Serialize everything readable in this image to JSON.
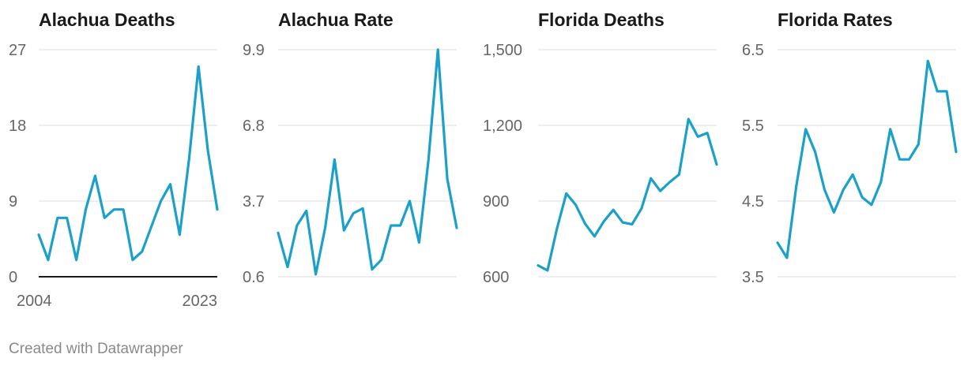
{
  "footer": "Created with Datawrapper",
  "chart_data": [
    {
      "type": "line",
      "title": "Alachua Deaths",
      "x": [
        2004,
        2005,
        2006,
        2007,
        2008,
        2009,
        2010,
        2011,
        2012,
        2013,
        2014,
        2015,
        2016,
        2017,
        2018,
        2019,
        2020,
        2021,
        2022,
        2023
      ],
      "values": [
        5,
        2,
        7,
        7,
        2,
        8,
        12,
        7,
        8,
        8,
        2,
        3,
        6,
        9,
        11,
        5,
        14,
        25,
        15,
        8
      ],
      "ylim": [
        0,
        27
      ],
      "yticks": [
        "27",
        "18",
        "9",
        "0"
      ],
      "ytick_values": [
        27,
        18,
        9,
        0
      ],
      "xticks": [
        "2004",
        "2023"
      ],
      "color": "#1ba1c9",
      "baseline": true
    },
    {
      "type": "line",
      "title": "Alachua Rate",
      "x": [
        2004,
        2005,
        2006,
        2007,
        2008,
        2009,
        2010,
        2011,
        2012,
        2013,
        2014,
        2015,
        2016,
        2017,
        2018,
        2019,
        2020,
        2021,
        2022,
        2023
      ],
      "values": [
        2.4,
        1.0,
        2.7,
        3.3,
        0.7,
        2.6,
        5.4,
        2.5,
        3.2,
        3.4,
        0.9,
        1.3,
        2.7,
        2.7,
        3.7,
        2.0,
        5.4,
        9.9,
        4.6,
        2.6
      ],
      "ylim": [
        0.6,
        9.9
      ],
      "yticks": [
        "9.9",
        "6.8",
        "3.7",
        "0.6"
      ],
      "ytick_values": [
        9.9,
        6.8,
        3.7,
        0.6
      ],
      "color": "#1ba1c9"
    },
    {
      "type": "line",
      "title": "Florida Deaths",
      "x": [
        2004,
        2005,
        2006,
        2007,
        2008,
        2009,
        2010,
        2011,
        2012,
        2013,
        2014,
        2015,
        2016,
        2017,
        2018,
        2019,
        2020,
        2021,
        2022,
        2023
      ],
      "values": [
        645,
        625,
        790,
        930,
        885,
        810,
        760,
        820,
        865,
        815,
        808,
        870,
        990,
        940,
        975,
        1005,
        1225,
        1155,
        1170,
        1045
      ],
      "ylim": [
        600,
        1500
      ],
      "yticks": [
        "1,500",
        "1,200",
        "900",
        "600"
      ],
      "ytick_values": [
        1500,
        1200,
        900,
        600
      ],
      "color": "#1ba1c9"
    },
    {
      "type": "line",
      "title": "Florida Rates",
      "x": [
        2004,
        2005,
        2006,
        2007,
        2008,
        2009,
        2010,
        2011,
        2012,
        2013,
        2014,
        2015,
        2016,
        2017,
        2018,
        2019,
        2020,
        2021,
        2022,
        2023
      ],
      "values": [
        3.95,
        3.75,
        4.7,
        5.45,
        5.15,
        4.65,
        4.35,
        4.65,
        4.85,
        4.55,
        4.45,
        4.75,
        5.45,
        5.05,
        5.05,
        5.25,
        6.35,
        5.95,
        5.95,
        5.15
      ],
      "ylim": [
        3.5,
        6.5
      ],
      "yticks": [
        "6.5",
        "5.5",
        "4.5",
        "3.5"
      ],
      "ytick_values": [
        6.5,
        5.5,
        4.5,
        3.5
      ],
      "color": "#1ba1c9"
    }
  ]
}
